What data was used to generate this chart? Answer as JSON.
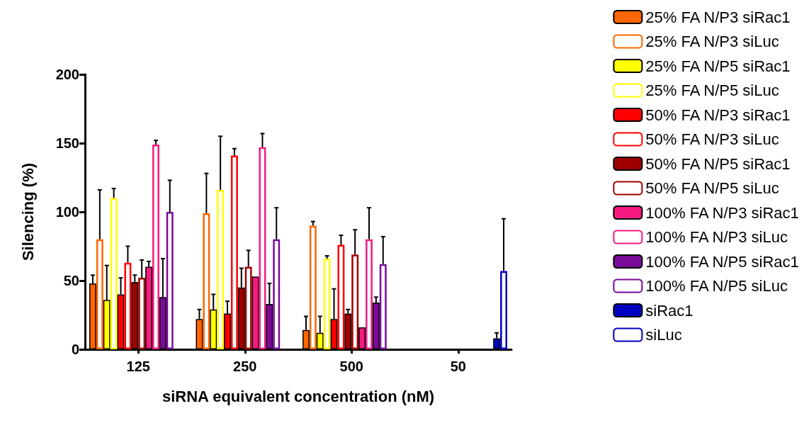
{
  "chart_data": {
    "type": "bar",
    "xlabel": "siRNA equivalent concentration (nM)",
    "ylabel": "Silencing (%)",
    "categories": [
      "125",
      "250",
      "500",
      "50"
    ],
    "ylim": [
      0,
      200
    ],
    "yticks": [
      0,
      50,
      100,
      150,
      200
    ],
    "grid": false,
    "legend": "right",
    "series": [
      {
        "name": "25% FA N/P3 siRac1",
        "color": "#ff6600",
        "values": [
          48,
          22,
          14,
          null
        ],
        "errors": [
          [
            48,
            54
          ],
          [
            22,
            29
          ],
          [
            14,
            24
          ],
          null
        ]
      },
      {
        "name": "25% FA N/P3 siLuc",
        "color": "#ff6600",
        "values": [
          80,
          99,
          90,
          null
        ],
        "errors": [
          [
            80,
            116
          ],
          [
            99,
            128
          ],
          [
            90,
            93
          ],
          null
        ]
      },
      {
        "name": "25% FA N/P5 siRac1",
        "color": "#ffff00",
        "values": [
          36,
          29,
          12,
          null
        ],
        "errors": [
          [
            36,
            61
          ],
          [
            29,
            40
          ],
          [
            12,
            24
          ],
          null
        ]
      },
      {
        "name": "25% FA N/P5 siLuc",
        "color": "#ffff00",
        "values": [
          110,
          116,
          66,
          null
        ],
        "errors": [
          [
            110,
            117
          ],
          [
            116,
            155
          ],
          [
            66,
            68
          ],
          null
        ]
      },
      {
        "name": "50% FA N/P3 siRac1",
        "color": "#ff0000",
        "values": [
          40,
          26,
          22,
          null
        ],
        "errors": [
          [
            40,
            52
          ],
          [
            26,
            35
          ],
          [
            22,
            44
          ],
          null
        ]
      },
      {
        "name": "50% FA N/P3 siLuc",
        "color": "#ff0000",
        "values": [
          63,
          141,
          76,
          null
        ],
        "errors": [
          [
            63,
            75
          ],
          [
            141,
            146
          ],
          [
            76,
            83
          ],
          null
        ]
      },
      {
        "name": "50% FA N/P5 siRac1",
        "color": "#a00000",
        "values": [
          49,
          45,
          26,
          null
        ],
        "errors": [
          [
            49,
            54
          ],
          [
            45,
            59
          ],
          [
            26,
            29
          ],
          null
        ]
      },
      {
        "name": "50% FA N/P5 siLuc",
        "color": "#a00000",
        "values": [
          52,
          60,
          69,
          null
        ],
        "errors": [
          [
            52,
            65
          ],
          [
            60,
            72
          ],
          [
            69,
            87
          ],
          null
        ]
      },
      {
        "name": "100% FA N/P3 siRac1",
        "color": "#f71a80",
        "values": [
          60,
          53,
          16,
          null
        ],
        "errors": [
          [
            60,
            64
          ],
          null,
          null,
          null
        ]
      },
      {
        "name": "100% FA N/P3 siLuc",
        "color": "#f71a80",
        "values": [
          149,
          147,
          80,
          null
        ],
        "errors": [
          [
            149,
            152
          ],
          [
            147,
            157
          ],
          [
            80,
            103
          ],
          null
        ]
      },
      {
        "name": "100% FA N/P5 siRac1",
        "color": "#7a0a9a",
        "values": [
          38,
          33,
          34,
          null
        ],
        "errors": [
          [
            38,
            66
          ],
          [
            33,
            48
          ],
          [
            34,
            38
          ],
          null
        ]
      },
      {
        "name": "100% FA N/P5 siLuc",
        "color": "#7a0a9a",
        "values": [
          100,
          80,
          62,
          null
        ],
        "errors": [
          [
            100,
            123
          ],
          [
            80,
            103
          ],
          [
            62,
            82
          ],
          null
        ]
      },
      {
        "name": "siRac1",
        "color": "#0000c0",
        "values": [
          null,
          null,
          null,
          8
        ],
        "errors": [
          null,
          null,
          null,
          [
            8,
            12
          ]
        ]
      },
      {
        "name": "siLuc",
        "color": "#0000c0",
        "values": [
          null,
          null,
          null,
          57
        ],
        "errors": [
          null,
          null,
          null,
          [
            57,
            95
          ]
        ]
      }
    ]
  }
}
